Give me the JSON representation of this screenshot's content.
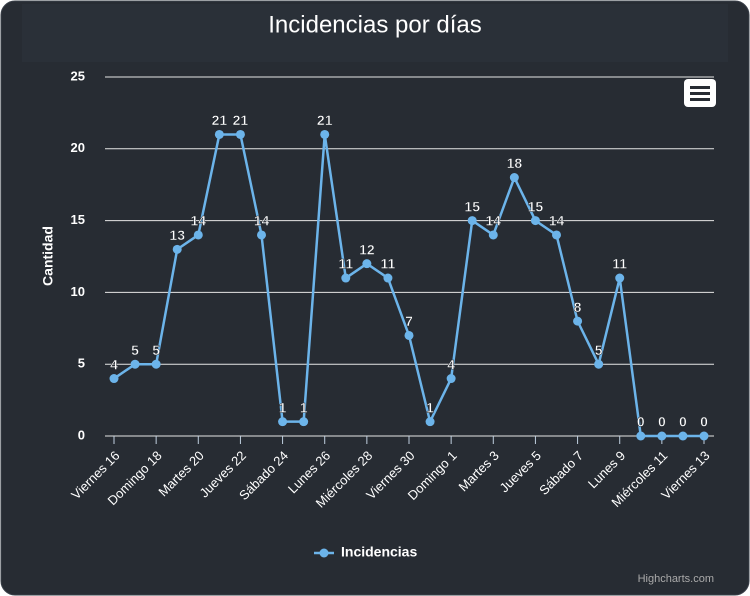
{
  "chart_data": {
    "type": "line",
    "title": "Incidencias por días",
    "ylabel": "Cantidad",
    "categories": [
      "Viernes 16",
      null,
      "Domingo 18",
      null,
      "Martes 20",
      null,
      "Jueves 22",
      null,
      "Sábado 24",
      null,
      "Lunes 26",
      null,
      "Miércoles 28",
      null,
      "Viernes 30",
      null,
      "Domingo 1",
      null,
      "Martes 3",
      null,
      "Jueves 5",
      null,
      "Sábado 7",
      null,
      "Lunes 9",
      null,
      "Miércoles 11",
      null,
      "Viernes 13"
    ],
    "series": [
      {
        "name": "Incidencias",
        "color": "#6cb4ea",
        "values": [
          4,
          5,
          5,
          13,
          14,
          21,
          21,
          14,
          1,
          1,
          21,
          11,
          12,
          11,
          7,
          1,
          4,
          15,
          14,
          18,
          15,
          14,
          8,
          5,
          11,
          0,
          0,
          0,
          0
        ]
      }
    ],
    "ylim": [
      0,
      25
    ],
    "yticks": [
      0,
      5,
      10,
      15,
      20,
      25
    ],
    "grid": true,
    "credits": "Highcharts.com"
  }
}
